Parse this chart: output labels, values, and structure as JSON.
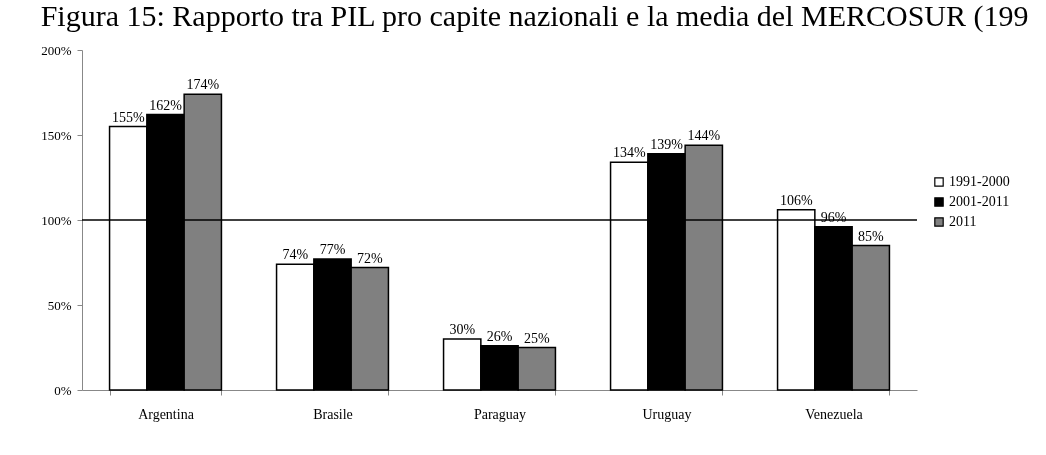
{
  "chart_data": {
    "type": "bar",
    "title": "Figura 15: Rapporto tra PIL pro capite nazionali e la media del MERCOSUR (199",
    "categories": [
      "Argentina",
      "Brasile",
      "Paraguay",
      "Uruguay",
      "Venezuela"
    ],
    "series": [
      {
        "name": "1991-2000",
        "color": "#ffffff",
        "values": [
          155,
          74,
          30,
          134,
          106
        ],
        "value_labels": [
          "155%",
          "74%",
          "30%",
          "134%",
          "106%"
        ]
      },
      {
        "name": "2001-2011",
        "color": "#000000",
        "values": [
          162,
          77,
          26,
          139,
          96
        ],
        "value_labels": [
          "162%",
          "77%",
          "26%",
          "139%",
          "96%"
        ]
      },
      {
        "name": "2011",
        "color": "#808080",
        "values": [
          174,
          72,
          25,
          144,
          85
        ],
        "value_labels": [
          "174%",
          "72%",
          "25%",
          "144%",
          "85%"
        ]
      }
    ],
    "ylim": [
      0,
      200
    ],
    "yticks": [
      {
        "value": 0,
        "label": "0%"
      },
      {
        "value": 50,
        "label": "50%"
      },
      {
        "value": 100,
        "label": "100%"
      },
      {
        "value": 150,
        "label": "150%"
      },
      {
        "value": 200,
        "label": "200%"
      }
    ],
    "ref_lines": [
      {
        "axis": "y",
        "value": 100,
        "color": "#000000"
      }
    ],
    "legend": "right"
  }
}
